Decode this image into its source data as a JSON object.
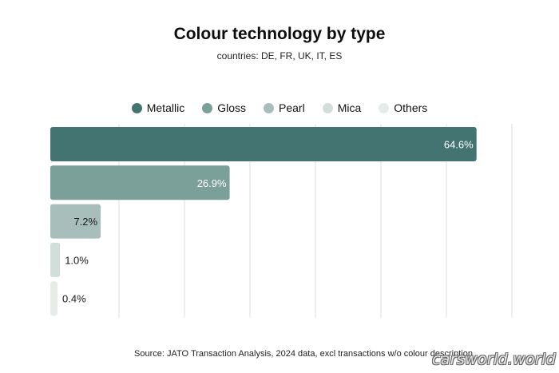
{
  "chart_data": {
    "type": "bar",
    "orientation": "horizontal",
    "title": "Colour technology by type",
    "subtitle": "countries: DE, FR, UK, IT, ES",
    "categories": [
      "Metallic",
      "Gloss",
      "Pearl",
      "Mica",
      "Others"
    ],
    "values": [
      64.6,
      26.9,
      7.2,
      1.0,
      0.4
    ],
    "value_labels": [
      "64.6%",
      "26.9%",
      "7.2%",
      "1.0%",
      "0.4%"
    ],
    "colors": [
      "#447471",
      "#7b9f99",
      "#a7bebb",
      "#d2deda",
      "#e8ece9"
    ],
    "xlim": [
      0,
      70
    ],
    "grid": true,
    "legend_position": "top"
  },
  "source": "Source: JATO Transaction Analysis, 2024 data, excl transactions w/o colour description",
  "watermark": "carsworld.world"
}
